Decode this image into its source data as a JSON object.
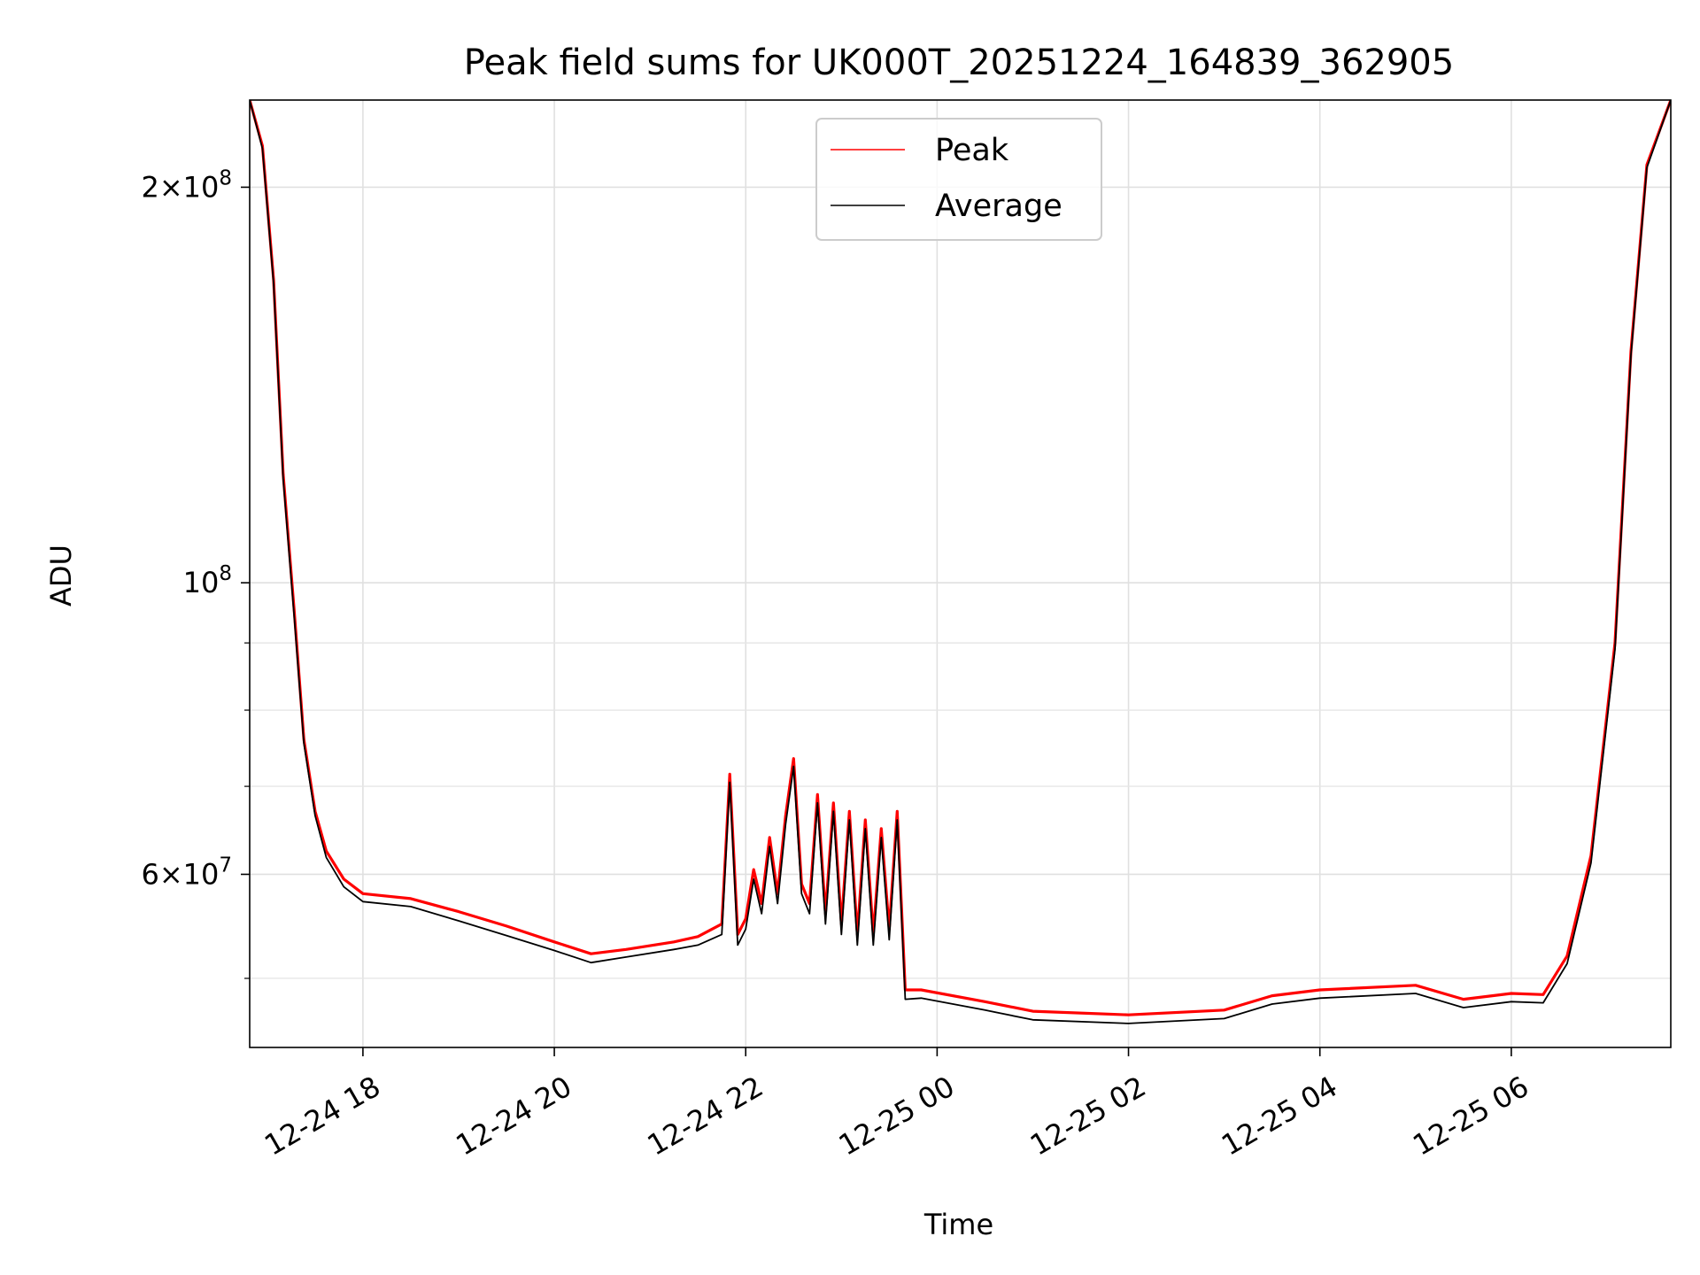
{
  "chart_data": {
    "type": "line",
    "title": "Peak field sums for UK000T_20251224_164839_362905",
    "xlabel": "Time",
    "ylabel": "ADU",
    "y_scale": "log",
    "ylim": [
      44300000,
      233000000
    ],
    "xlim": [
      "2025-12-24 16:49",
      "2025-12-25 07:40"
    ],
    "grid": true,
    "legend_position": "upper center",
    "x_ticks": [
      {
        "t": "2025-12-24 18:00",
        "label": "12-24 18"
      },
      {
        "t": "2025-12-24 20:00",
        "label": "12-24 20"
      },
      {
        "t": "2025-12-24 22:00",
        "label": "12-24 22"
      },
      {
        "t": "2025-12-25 00:00",
        "label": "12-25 00"
      },
      {
        "t": "2025-12-25 02:00",
        "label": "12-25 02"
      },
      {
        "t": "2025-12-25 04:00",
        "label": "12-25 04"
      },
      {
        "t": "2025-12-25 06:00",
        "label": "12-25 06"
      }
    ],
    "y_ticks": [
      {
        "v": 200000000,
        "base": "2×10",
        "exp": "8"
      },
      {
        "v": 100000000,
        "base": "10",
        "exp": "8"
      },
      {
        "v": 60000000,
        "base": "6×10",
        "exp": "7"
      }
    ],
    "y_minor_ticks": [
      50000000,
      70000000,
      80000000,
      90000000
    ],
    "series": [
      {
        "name": "Peak",
        "color": "#ff0000",
        "points": [
          [
            "2025-12-24 16:49",
            233000000
          ],
          [
            "2025-12-24 16:57",
            215000000
          ],
          [
            "2025-12-24 17:04",
            170000000
          ],
          [
            "2025-12-24 17:10",
            121000000
          ],
          [
            "2025-12-24 17:17",
            95000000
          ],
          [
            "2025-12-24 17:23",
            76000000
          ],
          [
            "2025-12-24 17:30",
            67000000
          ],
          [
            "2025-12-24 17:37",
            62500000
          ],
          [
            "2025-12-24 17:48",
            59500000
          ],
          [
            "2025-12-24 18:00",
            58000000
          ],
          [
            "2025-12-24 18:30",
            57500000
          ],
          [
            "2025-12-24 19:00",
            56200000
          ],
          [
            "2025-12-24 19:30",
            54800000
          ],
          [
            "2025-12-24 20:00",
            53300000
          ],
          [
            "2025-12-24 20:23",
            52200000
          ],
          [
            "2025-12-24 20:45",
            52600000
          ],
          [
            "2025-12-24 21:15",
            53300000
          ],
          [
            "2025-12-24 21:30",
            53800000
          ],
          [
            "2025-12-24 21:45",
            55000000
          ],
          [
            "2025-12-24 21:50",
            71500000
          ],
          [
            "2025-12-24 21:55",
            54000000
          ],
          [
            "2025-12-24 22:00",
            55500000
          ],
          [
            "2025-12-24 22:05",
            60500000
          ],
          [
            "2025-12-24 22:10",
            57000000
          ],
          [
            "2025-12-24 22:15",
            64000000
          ],
          [
            "2025-12-24 22:20",
            58000000
          ],
          [
            "2025-12-24 22:25",
            66500000
          ],
          [
            "2025-12-24 22:30",
            73500000
          ],
          [
            "2025-12-24 22:35",
            59000000
          ],
          [
            "2025-12-24 22:40",
            57000000
          ],
          [
            "2025-12-24 22:45",
            69000000
          ],
          [
            "2025-12-24 22:50",
            56000000
          ],
          [
            "2025-12-24 22:55",
            68000000
          ],
          [
            "2025-12-24 23:00",
            55000000
          ],
          [
            "2025-12-24 23:05",
            67000000
          ],
          [
            "2025-12-24 23:10",
            54000000
          ],
          [
            "2025-12-24 23:15",
            66000000
          ],
          [
            "2025-12-24 23:20",
            54000000
          ],
          [
            "2025-12-24 23:25",
            65000000
          ],
          [
            "2025-12-24 23:30",
            54500000
          ],
          [
            "2025-12-24 23:35",
            67000000
          ],
          [
            "2025-12-24 23:40",
            49000000
          ],
          [
            "2025-12-24 23:50",
            49000000
          ],
          [
            "2025-12-25 00:30",
            48000000
          ],
          [
            "2025-12-25 01:00",
            47200000
          ],
          [
            "2025-12-25 02:00",
            46900000
          ],
          [
            "2025-12-25 03:00",
            47300000
          ],
          [
            "2025-12-25 03:30",
            48500000
          ],
          [
            "2025-12-25 04:00",
            49000000
          ],
          [
            "2025-12-25 05:00",
            49400000
          ],
          [
            "2025-12-25 05:30",
            48200000
          ],
          [
            "2025-12-25 06:00",
            48700000
          ],
          [
            "2025-12-25 06:20",
            48600000
          ],
          [
            "2025-12-25 06:35",
            52000000
          ],
          [
            "2025-12-25 06:50",
            62000000
          ],
          [
            "2025-12-25 07:05",
            90000000
          ],
          [
            "2025-12-25 07:15",
            150000000
          ],
          [
            "2025-12-25 07:25",
            208000000
          ],
          [
            "2025-12-25 07:40",
            233000000
          ]
        ]
      },
      {
        "name": "Average",
        "color": "#000000",
        "points": [
          [
            "2025-12-24 16:49",
            233000000
          ],
          [
            "2025-12-24 16:57",
            214000000
          ],
          [
            "2025-12-24 17:04",
            169000000
          ],
          [
            "2025-12-24 17:10",
            120000000
          ],
          [
            "2025-12-24 17:17",
            94000000
          ],
          [
            "2025-12-24 17:23",
            75500000
          ],
          [
            "2025-12-24 17:30",
            66500000
          ],
          [
            "2025-12-24 17:37",
            61800000
          ],
          [
            "2025-12-24 17:48",
            58700000
          ],
          [
            "2025-12-24 18:00",
            57200000
          ],
          [
            "2025-12-24 18:30",
            56700000
          ],
          [
            "2025-12-24 19:00",
            55300000
          ],
          [
            "2025-12-24 19:30",
            53900000
          ],
          [
            "2025-12-24 20:00",
            52500000
          ],
          [
            "2025-12-24 20:23",
            51400000
          ],
          [
            "2025-12-24 20:45",
            51900000
          ],
          [
            "2025-12-24 21:15",
            52600000
          ],
          [
            "2025-12-24 21:30",
            53000000
          ],
          [
            "2025-12-24 21:45",
            54000000
          ],
          [
            "2025-12-24 21:50",
            70500000
          ],
          [
            "2025-12-24 21:55",
            53000000
          ],
          [
            "2025-12-24 22:00",
            54500000
          ],
          [
            "2025-12-24 22:05",
            59500000
          ],
          [
            "2025-12-24 22:10",
            56000000
          ],
          [
            "2025-12-24 22:15",
            63000000
          ],
          [
            "2025-12-24 22:20",
            57000000
          ],
          [
            "2025-12-24 22:25",
            65500000
          ],
          [
            "2025-12-24 22:30",
            72500000
          ],
          [
            "2025-12-24 22:35",
            58000000
          ],
          [
            "2025-12-24 22:40",
            56000000
          ],
          [
            "2025-12-24 22:45",
            68000000
          ],
          [
            "2025-12-24 22:50",
            55000000
          ],
          [
            "2025-12-24 22:55",
            67000000
          ],
          [
            "2025-12-24 23:00",
            54000000
          ],
          [
            "2025-12-24 23:05",
            66000000
          ],
          [
            "2025-12-24 23:10",
            53000000
          ],
          [
            "2025-12-24 23:15",
            65000000
          ],
          [
            "2025-12-24 23:20",
            53000000
          ],
          [
            "2025-12-24 23:25",
            64000000
          ],
          [
            "2025-12-24 23:30",
            53500000
          ],
          [
            "2025-12-24 23:35",
            66000000
          ],
          [
            "2025-12-24 23:40",
            48200000
          ],
          [
            "2025-12-24 23:50",
            48300000
          ],
          [
            "2025-12-25 00:30",
            47300000
          ],
          [
            "2025-12-25 01:00",
            46500000
          ],
          [
            "2025-12-25 02:00",
            46200000
          ],
          [
            "2025-12-25 03:00",
            46600000
          ],
          [
            "2025-12-25 03:30",
            47800000
          ],
          [
            "2025-12-25 04:00",
            48300000
          ],
          [
            "2025-12-25 05:00",
            48700000
          ],
          [
            "2025-12-25 05:30",
            47500000
          ],
          [
            "2025-12-25 06:00",
            48000000
          ],
          [
            "2025-12-25 06:20",
            47900000
          ],
          [
            "2025-12-25 06:35",
            51300000
          ],
          [
            "2025-12-25 06:50",
            61200000
          ],
          [
            "2025-12-25 07:05",
            89000000
          ],
          [
            "2025-12-25 07:15",
            149000000
          ],
          [
            "2025-12-25 07:25",
            207000000
          ],
          [
            "2025-12-25 07:40",
            233000000
          ]
        ]
      }
    ]
  }
}
